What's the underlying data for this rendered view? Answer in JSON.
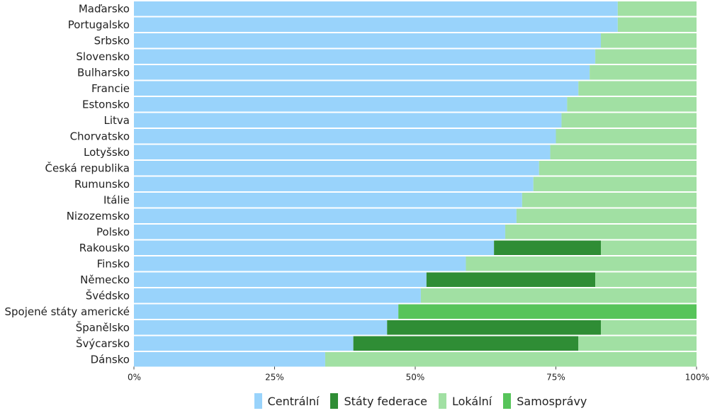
{
  "chart_data": {
    "type": "bar",
    "orientation": "horizontal",
    "stacked": true,
    "normalized": true,
    "categories": [
      "Maďarsko",
      "Portugalsko",
      "Srbsko",
      "Slovensko",
      "Bulharsko",
      "Francie",
      "Estonsko",
      "Litva",
      "Chorvatsko",
      "Lotyšsko",
      "Česká republika",
      "Rumunsko",
      "Itálie",
      "Nizozemsko",
      "Polsko",
      "Rakousko",
      "Finsko",
      "Německo",
      "Švédsko",
      "Spojené státy americké",
      "Španělsko",
      "Švýcarsko",
      "Dánsko"
    ],
    "series": [
      {
        "name": "Centrální",
        "color": "#99d3fb",
        "values": [
          86,
          86,
          83,
          82,
          81,
          79,
          77,
          76,
          75,
          74,
          72,
          71,
          69,
          68,
          66,
          64,
          59,
          52,
          51,
          47,
          45,
          39,
          34
        ]
      },
      {
        "name": "Státy federace",
        "color": "#2f8d35",
        "values": [
          0,
          0,
          0,
          0,
          0,
          0,
          0,
          0,
          0,
          0,
          0,
          0,
          0,
          0,
          0,
          19,
          0,
          30,
          0,
          0,
          38,
          40,
          0
        ]
      },
      {
        "name": "Lokální",
        "color": "#a1e0a3",
        "values": [
          14,
          14,
          17,
          18,
          19,
          21,
          23,
          24,
          25,
          26,
          28,
          29,
          31,
          32,
          34,
          17,
          41,
          18,
          49,
          0,
          17,
          21,
          66
        ]
      },
      {
        "name": "Samosprávy",
        "color": "#57c45a",
        "values": [
          0,
          0,
          0,
          0,
          0,
          0,
          0,
          0,
          0,
          0,
          0,
          0,
          0,
          0,
          0,
          0,
          0,
          0,
          0,
          53,
          0,
          0,
          0
        ]
      }
    ],
    "xlim": [
      0,
      100
    ],
    "xticks": [
      {
        "value": 0,
        "label": "0%"
      },
      {
        "value": 25,
        "label": "25%"
      },
      {
        "value": 50,
        "label": "50%"
      },
      {
        "value": 75,
        "label": "75%"
      },
      {
        "value": 100,
        "label": "100%"
      }
    ],
    "legend_position": "bottom"
  }
}
